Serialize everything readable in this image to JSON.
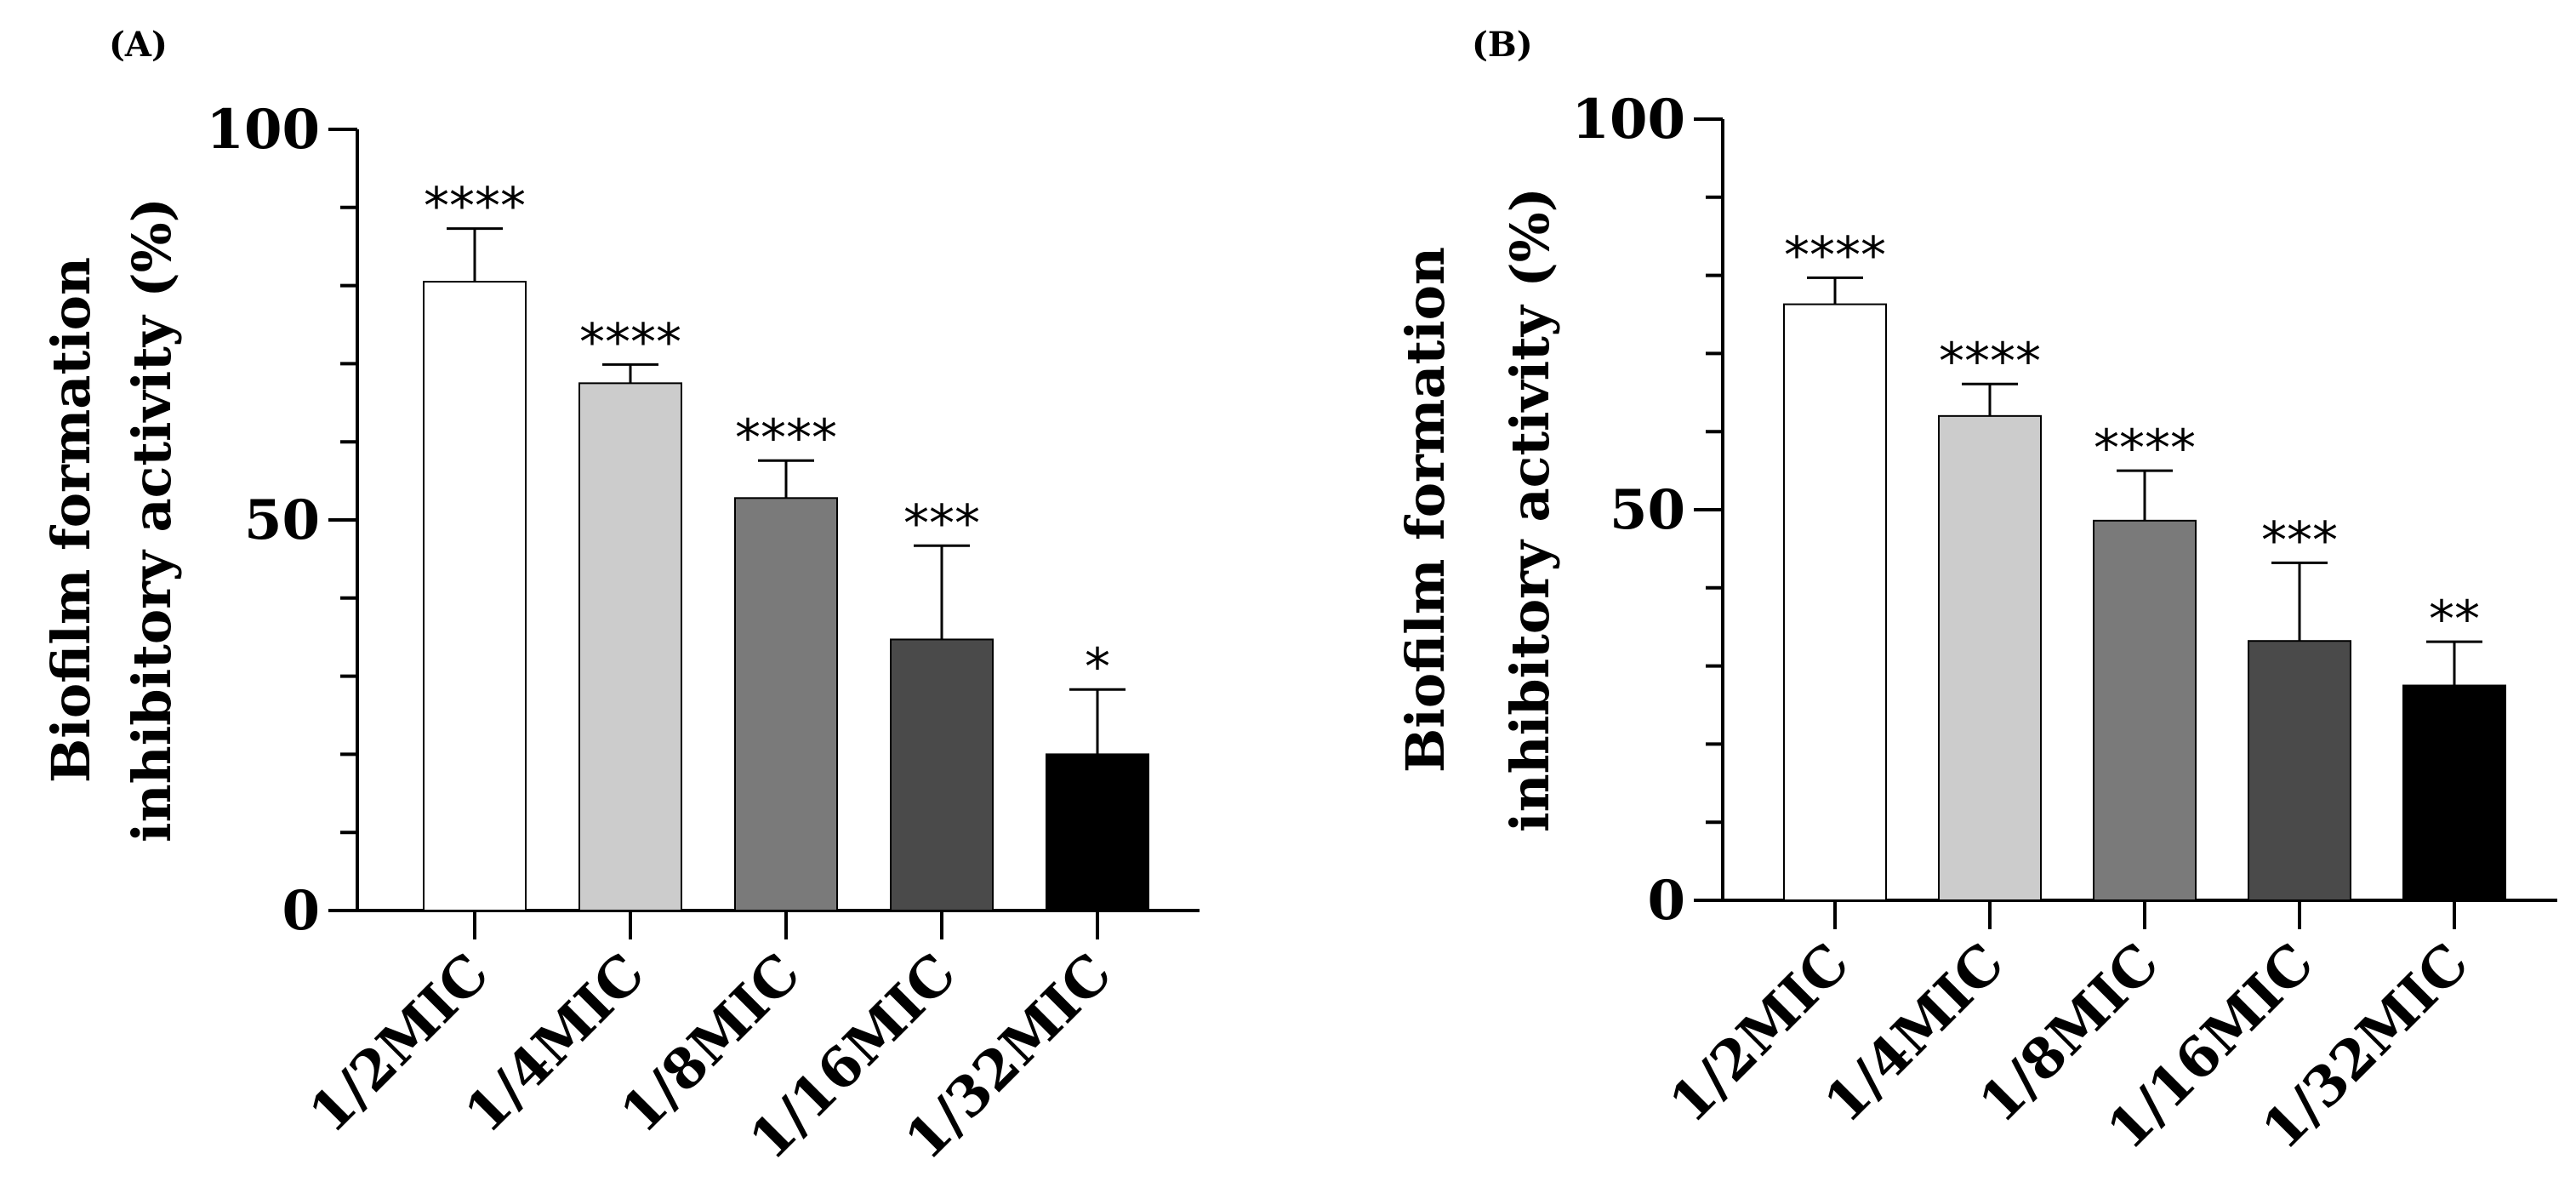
{
  "chart_data": [
    {
      "type": "bar",
      "panel_label": "(A)",
      "title": "",
      "xlabel": "",
      "ylabel": [
        "Biofilm formation",
        "inhibitory activity (%)"
      ],
      "ylim": [
        0,
        100
      ],
      "yticks": [
        "0",
        "50",
        "100"
      ],
      "categories": [
        "1/2MIC",
        "1/4MIC",
        "1/8MIC",
        "1/16MIC",
        "1/32MIC"
      ],
      "values": [
        80.5,
        67.5,
        52.8,
        34.7,
        20.0
      ],
      "errors": [
        6.8,
        2.4,
        4.8,
        12.0,
        8.3
      ],
      "significance": [
        "****",
        "****",
        "****",
        "***",
        "*"
      ],
      "bar_colors": [
        "#ffffff",
        "#cccccc",
        "#7a7a7a",
        "#4a4a4a",
        "#000000"
      ]
    },
    {
      "type": "bar",
      "panel_label": "(B)",
      "title": "",
      "xlabel": "",
      "ylabel": [
        "Biofilm formation",
        "inhibitory activity (%)"
      ],
      "ylim": [
        0,
        100
      ],
      "yticks": [
        "0",
        "50",
        "100"
      ],
      "categories": [
        "1/2MIC",
        "1/4MIC",
        "1/8MIC",
        "1/16MIC",
        "1/32MIC"
      ],
      "values": [
        76.3,
        62.0,
        48.6,
        33.2,
        27.5
      ],
      "errors": [
        3.4,
        4.1,
        6.4,
        10.0,
        5.6
      ],
      "significance": [
        "****",
        "****",
        "****",
        "***",
        "**"
      ],
      "bar_colors": [
        "#ffffff",
        "#cccccc",
        "#7a7a7a",
        "#4a4a4a",
        "#000000"
      ]
    }
  ]
}
